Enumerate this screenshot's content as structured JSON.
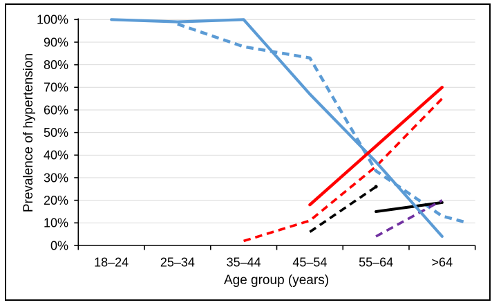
{
  "figure": {
    "background_color": "#FFFFFF",
    "border_color": "#000000"
  },
  "chart_data": {
    "type": "line",
    "title": "",
    "xlabel": "Age group (years)",
    "ylabel": "Prevalence of hypertension",
    "categories": [
      "18–24",
      "25–34",
      "35–44",
      "45–54",
      "55–64",
      ">64"
    ],
    "y_axis": {
      "min": 0,
      "max": 100,
      "step": 10,
      "unit": "percent",
      "tick_labels": [
        "0%",
        "10%",
        "20%",
        "30%",
        "40%",
        "50%",
        "60%",
        "70%",
        "80%",
        "90%",
        "100%"
      ]
    },
    "grid": true,
    "gridline_color": "#D9D9D9",
    "axis_color": "#000000",
    "legend": "none",
    "series": [
      {
        "name": "blue-dashed",
        "color": "#5B9BD5",
        "line_style": "dashed",
        "width": 4.4,
        "points": [
          [
            1,
            98
          ],
          [
            2,
            88
          ],
          [
            3,
            83
          ],
          [
            4,
            33
          ],
          [
            5,
            13
          ],
          [
            5.39,
            10
          ]
        ]
      },
      {
        "name": "black-dashed",
        "color": "#000000",
        "line_style": "dashed",
        "width": 3.6,
        "end_dot": true,
        "points": [
          [
            3,
            6
          ],
          [
            4,
            26
          ]
        ]
      },
      {
        "name": "red-dashed",
        "color": "#FF0000",
        "line_style": "dashed",
        "width": 3.6,
        "points": [
          [
            2,
            2
          ],
          [
            3,
            11
          ],
          [
            4,
            35
          ],
          [
            5,
            65
          ]
        ]
      },
      {
        "name": "black-solid",
        "color": "#000000",
        "line_style": "solid",
        "width": 4,
        "points": [
          [
            4,
            15
          ],
          [
            5,
            19
          ]
        ]
      },
      {
        "name": "purple-dashed",
        "color": "#7030A0",
        "line_style": "dashed",
        "width": 3.6,
        "points": [
          [
            4,
            4
          ],
          [
            5,
            20
          ]
        ]
      },
      {
        "name": "blue-solid",
        "color": "#5B9BD5",
        "line_style": "solid",
        "width": 4.2,
        "points": [
          [
            0,
            100
          ],
          [
            1,
            99
          ],
          [
            2,
            100
          ],
          [
            3,
            67
          ],
          [
            4,
            37
          ],
          [
            5,
            4
          ]
        ]
      },
      {
        "name": "red-solid",
        "color": "#FF0000",
        "line_style": "solid",
        "width": 4.4,
        "points": [
          [
            3,
            18
          ],
          [
            4,
            44
          ],
          [
            5,
            70
          ]
        ]
      }
    ]
  }
}
